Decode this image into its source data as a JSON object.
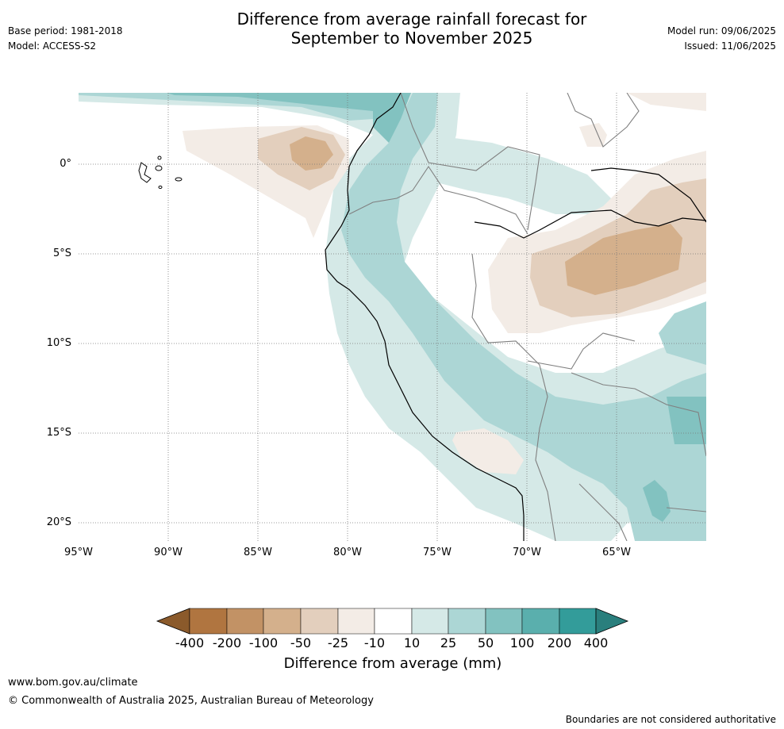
{
  "title": {
    "line1": "Difference from average rainfall forecast for",
    "line2": "September to November 2025"
  },
  "meta": {
    "base_period": "Base period: 1981-2018",
    "model": "Model: ACCESS-S2",
    "model_run": "Model run: 09/06/2025",
    "issued": "Issued: 11/06/2025"
  },
  "map": {
    "latitude_labels": [
      "0°",
      "5°S",
      "10°S",
      "15°S",
      "20°S"
    ],
    "longitude_labels": [
      "95°W",
      "90°W",
      "85°W",
      "80°W",
      "75°W",
      "70°W",
      "65°W"
    ],
    "colors": {
      "coast": "#000000",
      "borders": "#808080",
      "grid": "#777777"
    }
  },
  "colorbar": {
    "ticks": [
      "-400",
      "-200",
      "-100",
      "-50",
      "-25",
      "-10",
      "10",
      "25",
      "50",
      "100",
      "200",
      "400"
    ],
    "colors": [
      "#8b5a2b",
      "#b07540",
      "#c29265",
      "#d4b08c",
      "#e3cfbd",
      "#f3ece6",
      "#ffffff",
      "#d5e9e7",
      "#acd6d5",
      "#82c2c0",
      "#5aafad",
      "#339c9a",
      "#2a7f7d"
    ],
    "label": "Difference from average (mm)"
  },
  "footer": {
    "url": "www.bom.gov.au/climate",
    "copyright": "© Commonwealth of Australia 2025, Australian Bureau of Meteorology",
    "disclaimer": "Boundaries are not considered authoritative"
  }
}
